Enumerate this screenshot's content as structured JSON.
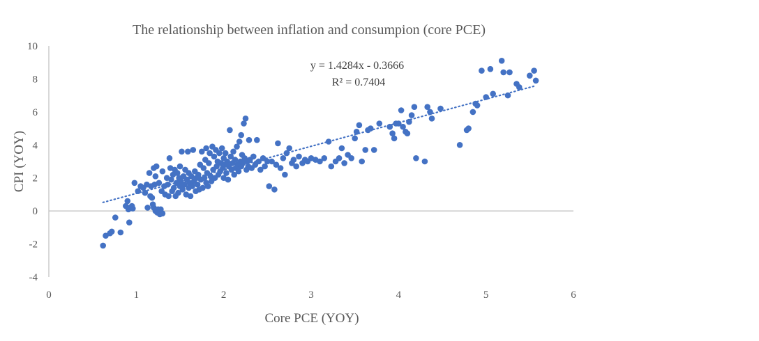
{
  "chart_data": {
    "type": "scatter",
    "title": "The relationship between inflation and consumpion (core PCE)",
    "xlabel": "Core PCE (YOY)",
    "ylabel": "CPI (YOY)",
    "xlim": [
      0,
      6
    ],
    "ylim": [
      -4,
      10
    ],
    "xticks": [
      "0",
      "1",
      "2",
      "3",
      "4",
      "5",
      "6"
    ],
    "yticks": [
      "-4",
      "-2",
      "0",
      "2",
      "4",
      "6",
      "8",
      "10"
    ],
    "grid": false,
    "legend": "none",
    "marker_color": "#4472C4",
    "trendline": {
      "style": "dotted",
      "slope": 1.4284,
      "intercept": -0.3666,
      "x_range": [
        0.62,
        5.57
      ],
      "equation": "y = 1.4284x - 0.3666",
      "r2": "R² = 0.7404"
    },
    "points": [
      [
        0.62,
        -2.1
      ],
      [
        0.65,
        -1.5
      ],
      [
        0.7,
        -1.35
      ],
      [
        0.72,
        -1.25
      ],
      [
        0.76,
        -0.4
      ],
      [
        0.82,
        -1.3
      ],
      [
        0.88,
        0.3
      ],
      [
        0.9,
        0.6
      ],
      [
        0.91,
        0.1
      ],
      [
        0.92,
        -0.7
      ],
      [
        0.93,
        0.2
      ],
      [
        0.95,
        0.3
      ],
      [
        0.96,
        0.15
      ],
      [
        0.98,
        1.7
      ],
      [
        1.02,
        1.2
      ],
      [
        1.05,
        1.5
      ],
      [
        1.08,
        1.4
      ],
      [
        1.1,
        1.1
      ],
      [
        1.12,
        1.6
      ],
      [
        1.13,
        0.2
      ],
      [
        1.15,
        2.3
      ],
      [
        1.16,
        0.9
      ],
      [
        1.17,
        1.5
      ],
      [
        1.18,
        0.8
      ],
      [
        1.19,
        0.4
      ],
      [
        1.2,
        2.6
      ],
      [
        1.2,
        0.2
      ],
      [
        1.21,
        1.6
      ],
      [
        1.22,
        0.0
      ],
      [
        1.22,
        2.1
      ],
      [
        1.23,
        2.7
      ],
      [
        1.24,
        -0.1
      ],
      [
        1.25,
        0.1
      ],
      [
        1.26,
        1.7
      ],
      [
        1.27,
        -0.2
      ],
      [
        1.28,
        0.1
      ],
      [
        1.29,
        1.2
      ],
      [
        1.3,
        2.4
      ],
      [
        1.3,
        -0.15
      ],
      [
        1.32,
        1.5
      ],
      [
        1.33,
        1.0
      ],
      [
        1.35,
        2.0
      ],
      [
        1.36,
        1.6
      ],
      [
        1.37,
        0.9
      ],
      [
        1.38,
        3.2
      ],
      [
        1.39,
        2.6
      ],
      [
        1.4,
        1.9
      ],
      [
        1.41,
        1.2
      ],
      [
        1.42,
        2.2
      ],
      [
        1.43,
        1.4
      ],
      [
        1.44,
        2.5
      ],
      [
        1.45,
        0.9
      ],
      [
        1.46,
        1.7
      ],
      [
        1.47,
        2.3
      ],
      [
        1.48,
        1.1
      ],
      [
        1.49,
        2.0
      ],
      [
        1.5,
        1.5
      ],
      [
        1.5,
        2.7
      ],
      [
        1.51,
        1.8
      ],
      [
        1.52,
        3.6
      ],
      [
        1.53,
        1.3
      ],
      [
        1.54,
        2.1
      ],
      [
        1.55,
        1.6
      ],
      [
        1.56,
        2.5
      ],
      [
        1.57,
        1.0
      ],
      [
        1.58,
        1.9
      ],
      [
        1.59,
        3.6
      ],
      [
        1.6,
        1.4
      ],
      [
        1.6,
        2.3
      ],
      [
        1.61,
        1.7
      ],
      [
        1.62,
        0.9
      ],
      [
        1.63,
        2.1
      ],
      [
        1.64,
        1.5
      ],
      [
        1.65,
        3.7
      ],
      [
        1.66,
        1.8
      ],
      [
        1.67,
        2.4
      ],
      [
        1.68,
        1.2
      ],
      [
        1.69,
        2.0
      ],
      [
        1.7,
        1.6
      ],
      [
        1.71,
        2.2
      ],
      [
        1.72,
        1.3
      ],
      [
        1.73,
        2.8
      ],
      [
        1.74,
        1.9
      ],
      [
        1.75,
        3.6
      ],
      [
        1.76,
        1.4
      ],
      [
        1.77,
        2.6
      ],
      [
        1.78,
        2.0
      ],
      [
        1.79,
        3.1
      ],
      [
        1.8,
        1.7
      ],
      [
        1.8,
        3.8
      ],
      [
        1.81,
        2.3
      ],
      [
        1.82,
        1.5
      ],
      [
        1.83,
        2.9
      ],
      [
        1.84,
        3.5
      ],
      [
        1.85,
        2.1
      ],
      [
        1.86,
        1.8
      ],
      [
        1.87,
        3.9
      ],
      [
        1.88,
        2.5
      ],
      [
        1.89,
        3.3
      ],
      [
        1.9,
        2.0
      ],
      [
        1.91,
        3.7
      ],
      [
        1.92,
        2.7
      ],
      [
        1.93,
        3.0
      ],
      [
        1.94,
        2.2
      ],
      [
        1.95,
        3.5
      ],
      [
        1.96,
        2.4
      ],
      [
        1.97,
        2.9
      ],
      [
        1.98,
        3.8
      ],
      [
        1.99,
        2.6
      ],
      [
        2.0,
        3.2
      ],
      [
        2.0,
        2.0
      ],
      [
        2.01,
        2.8
      ],
      [
        2.02,
        3.5
      ],
      [
        2.03,
        2.3
      ],
      [
        2.04,
        3.0
      ],
      [
        2.05,
        1.9
      ],
      [
        2.06,
        2.7
      ],
      [
        2.07,
        4.9
      ],
      [
        2.08,
        3.3
      ],
      [
        2.09,
        2.5
      ],
      [
        2.1,
        2.9
      ],
      [
        2.11,
        3.6
      ],
      [
        2.12,
        2.2
      ],
      [
        2.13,
        3.1
      ],
      [
        2.14,
        2.6
      ],
      [
        2.15,
        3.9
      ],
      [
        2.16,
        2.8
      ],
      [
        2.17,
        2.4
      ],
      [
        2.18,
        4.2
      ],
      [
        2.19,
        3.0
      ],
      [
        2.2,
        2.7
      ],
      [
        2.2,
        4.6
      ],
      [
        2.21,
        3.4
      ],
      [
        2.22,
        2.9
      ],
      [
        2.23,
        5.3
      ],
      [
        2.24,
        3.2
      ],
      [
        2.25,
        5.6
      ],
      [
        2.26,
        2.5
      ],
      [
        2.27,
        3.0
      ],
      [
        2.28,
        2.7
      ],
      [
        2.29,
        4.3
      ],
      [
        2.3,
        3.1
      ],
      [
        2.32,
        2.6
      ],
      [
        2.34,
        3.3
      ],
      [
        2.36,
        2.8
      ],
      [
        2.38,
        4.3
      ],
      [
        2.4,
        3.0
      ],
      [
        2.42,
        2.5
      ],
      [
        2.45,
        3.2
      ],
      [
        2.47,
        2.7
      ],
      [
        2.5,
        3.0
      ],
      [
        2.52,
        1.5
      ],
      [
        2.55,
        3.0
      ],
      [
        2.58,
        1.3
      ],
      [
        2.6,
        2.8
      ],
      [
        2.62,
        4.1
      ],
      [
        2.65,
        2.6
      ],
      [
        2.68,
        3.2
      ],
      [
        2.7,
        2.2
      ],
      [
        2.72,
        3.5
      ],
      [
        2.75,
        3.8
      ],
      [
        2.78,
        2.9
      ],
      [
        2.8,
        3.1
      ],
      [
        2.83,
        2.7
      ],
      [
        2.86,
        3.3
      ],
      [
        2.9,
        2.9
      ],
      [
        2.93,
        3.1
      ],
      [
        2.96,
        3.0
      ],
      [
        3.0,
        3.2
      ],
      [
        3.05,
        3.1
      ],
      [
        3.1,
        3.0
      ],
      [
        3.15,
        3.2
      ],
      [
        3.2,
        4.2
      ],
      [
        3.23,
        2.7
      ],
      [
        3.28,
        3.0
      ],
      [
        3.32,
        3.2
      ],
      [
        3.35,
        3.8
      ],
      [
        3.38,
        2.9
      ],
      [
        3.42,
        3.4
      ],
      [
        3.46,
        3.2
      ],
      [
        3.5,
        4.4
      ],
      [
        3.52,
        4.8
      ],
      [
        3.55,
        5.2
      ],
      [
        3.58,
        3.0
      ],
      [
        3.62,
        3.7
      ],
      [
        3.65,
        4.9
      ],
      [
        3.68,
        5.0
      ],
      [
        3.72,
        3.7
      ],
      [
        3.78,
        5.3
      ],
      [
        3.9,
        5.1
      ],
      [
        3.93,
        4.7
      ],
      [
        3.95,
        4.4
      ],
      [
        3.97,
        5.3
      ],
      [
        4.0,
        5.3
      ],
      [
        4.03,
        6.1
      ],
      [
        4.05,
        5.1
      ],
      [
        4.08,
        4.8
      ],
      [
        4.1,
        4.7
      ],
      [
        4.12,
        5.4
      ],
      [
        4.15,
        5.8
      ],
      [
        4.18,
        6.3
      ],
      [
        4.2,
        3.2
      ],
      [
        4.3,
        3.0
      ],
      [
        4.33,
        6.3
      ],
      [
        4.36,
        6.0
      ],
      [
        4.38,
        5.6
      ],
      [
        4.48,
        6.2
      ],
      [
        4.7,
        4.0
      ],
      [
        4.78,
        4.9
      ],
      [
        4.8,
        5.0
      ],
      [
        4.85,
        6.0
      ],
      [
        4.88,
        6.5
      ],
      [
        4.9,
        6.4
      ],
      [
        4.95,
        8.5
      ],
      [
        5.0,
        6.9
      ],
      [
        5.05,
        8.6
      ],
      [
        5.08,
        7.1
      ],
      [
        5.18,
        9.1
      ],
      [
        5.2,
        8.4
      ],
      [
        5.25,
        7.0
      ],
      [
        5.27,
        8.4
      ],
      [
        5.35,
        7.7
      ],
      [
        5.38,
        7.5
      ],
      [
        5.5,
        8.2
      ],
      [
        5.55,
        8.5
      ],
      [
        5.57,
        7.9
      ]
    ]
  }
}
